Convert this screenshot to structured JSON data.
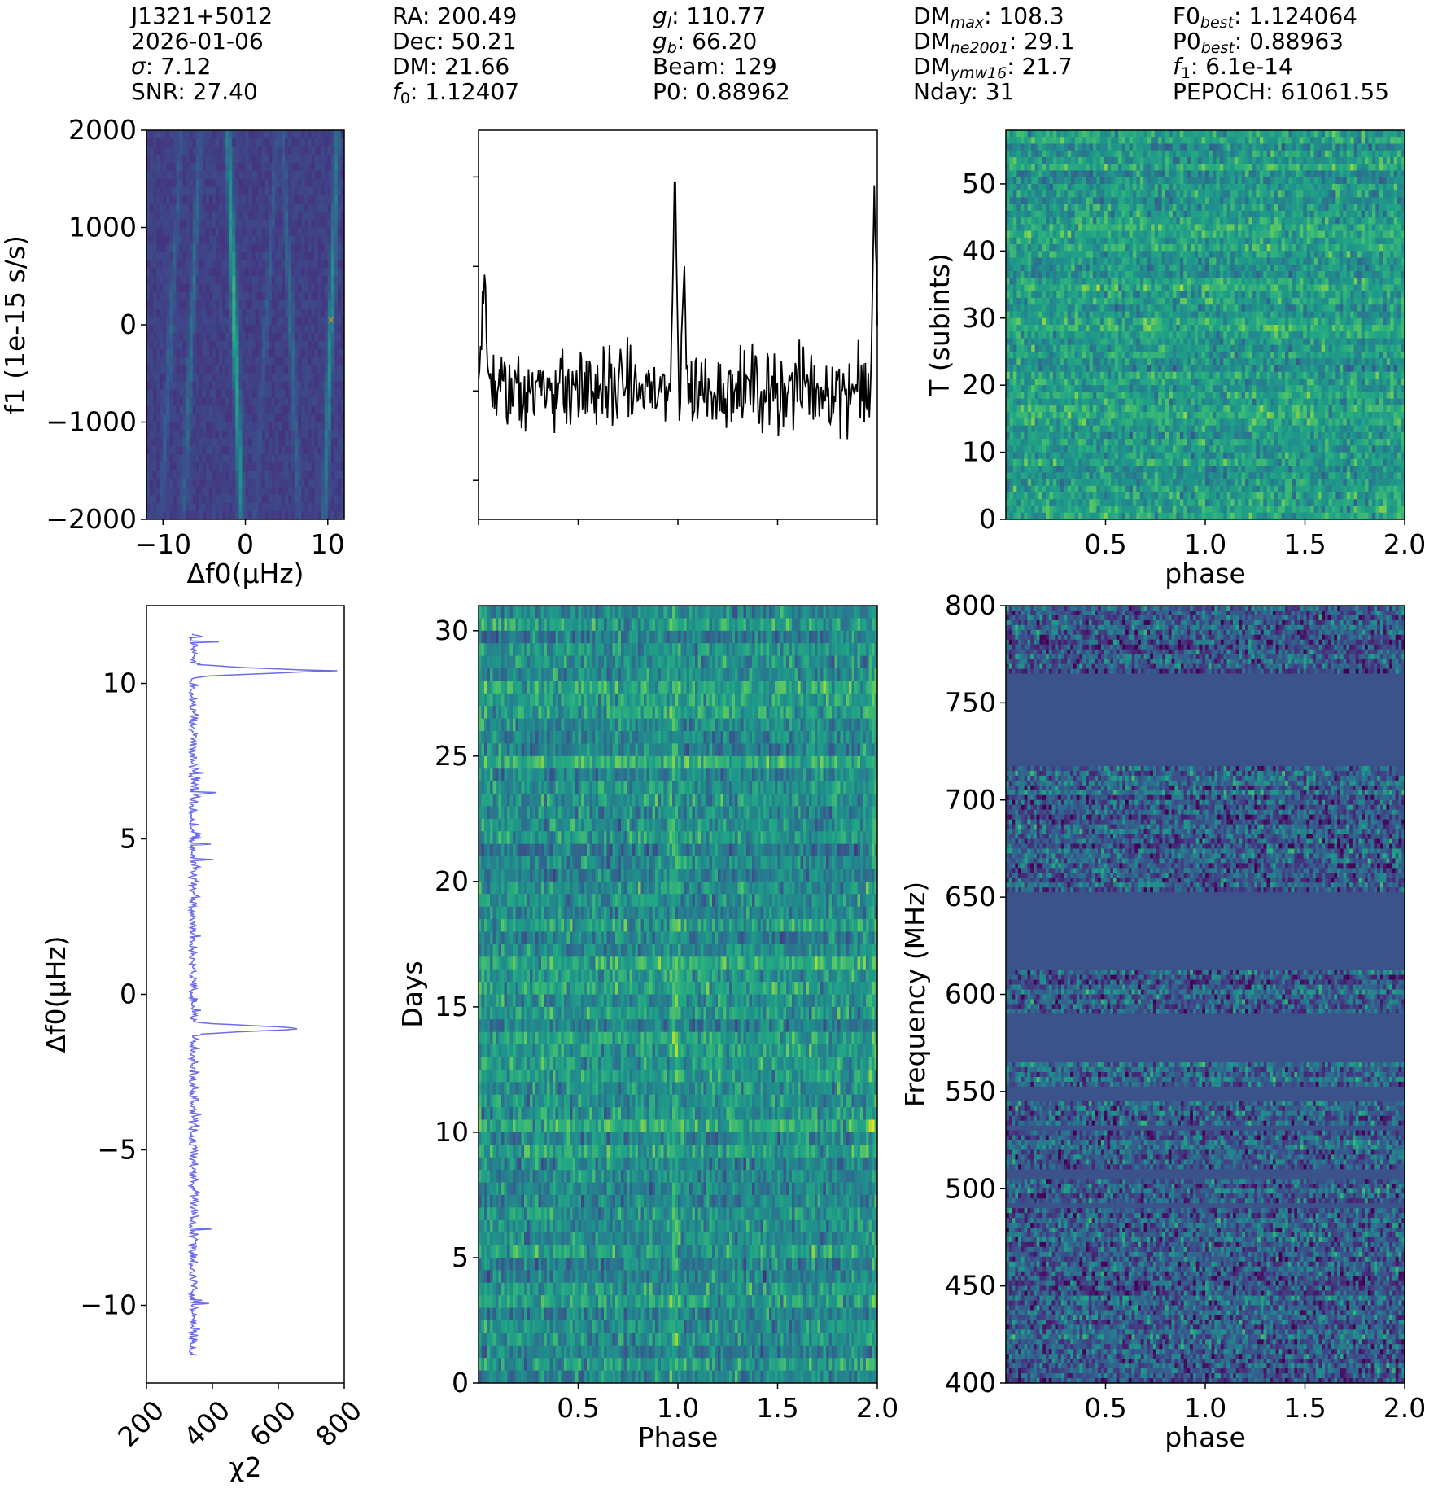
{
  "header": {
    "col1": {
      "name": "J1321+5012",
      "date": "2026-01-06",
      "sigma_label": "σ",
      "sigma": "7.12",
      "snr_label": "SNR",
      "snr": "27.40"
    },
    "col2": {
      "ra_label": "RA",
      "ra": "200.49",
      "dec_label": "Dec",
      "dec": "50.21",
      "dm_label": "DM",
      "dm": "21.66",
      "f0_label": "f",
      "f0_sub": "0",
      "f0": "1.12407"
    },
    "col3": {
      "gl_label": "g",
      "gl_sub": "l",
      "gl": "110.77",
      "gb_label": "g",
      "gb_sub": "b",
      "gb": "66.20",
      "beam_label": "Beam",
      "beam": "129",
      "p0_label": "P0",
      "p0": "0.88962"
    },
    "col4": {
      "dm_label": "DM",
      "dmmax_sub": "max",
      "dmmax": "108.3",
      "dmne_sub": "ne2001",
      "dmne": "29.1",
      "dmymw_sub": "ymw16",
      "dmymw": "21.7",
      "nday_label": "Nday",
      "nday": "31"
    },
    "col5": {
      "f0b_label": "F0",
      "f0b_sub": "best",
      "f0b": "1.124064",
      "p0b_label": "P0",
      "p0b_sub": "best",
      "p0b": "0.88963",
      "f1_label": "f",
      "f1_sub": "1",
      "f1": "6.1e-14",
      "pepoch_label": "PEPOCH",
      "pepoch": "61061.55"
    }
  },
  "colors": {
    "profile_line": "#000000",
    "chi2_line": "#6b6bf0",
    "marker": "#ff7f0e",
    "flagged_bg": "#3b528b"
  },
  "chart_data": [
    {
      "id": "f0_f1_search",
      "type": "heatmap",
      "cmap": "viridis",
      "xlabel": "Δf0(μHz)",
      "ylabel": "f1 (1e-15 s/s)",
      "xlim": [
        -12,
        12
      ],
      "ylim": [
        -2000,
        2000
      ],
      "xticks": [
        -10,
        0,
        10
      ],
      "xtick_labels": [
        "−10",
        "0",
        "10"
      ],
      "yticks": [
        2000,
        1000,
        0,
        -1000,
        -2000
      ],
      "ytick_labels": [
        "2000",
        "1000",
        "0",
        "−1000",
        "−2000"
      ],
      "ridges": [
        {
          "x0": -1.3,
          "slope": -0.0004,
          "strength": 0.9
        },
        {
          "x0": 10.4,
          "slope": 0.0004,
          "strength": 0.6
        },
        {
          "x0": -6.5,
          "slope": 0.0005,
          "strength": 0.35
        },
        {
          "x0": 5.5,
          "slope": -0.0005,
          "strength": 0.3
        },
        {
          "x0": -9,
          "slope": 0.0006,
          "strength": 0.25
        },
        {
          "x0": 2.5,
          "slope": 0.0007,
          "strength": 0.2
        }
      ],
      "marker": {
        "x": 10.4,
        "y": 50
      }
    },
    {
      "id": "pulse_profile",
      "type": "line",
      "xlabel": "",
      "ylabel": "",
      "x_range": [
        0,
        2
      ],
      "points": 400,
      "peaks": [
        {
          "phase": 0.985,
          "height": 1.0
        },
        {
          "phase": 0.03,
          "height": 0.55
        }
      ],
      "baseline_noise": 0.25
    },
    {
      "id": "subint_phase",
      "type": "heatmap",
      "cmap": "viridis",
      "xlabel": "phase",
      "ylabel": "T (subints)",
      "xlim": [
        0,
        2
      ],
      "ylim": [
        0,
        58
      ],
      "xticks": [
        0.5,
        1.0,
        1.5,
        2.0
      ],
      "xtick_labels": [
        "0.5",
        "1.0",
        "1.5",
        "2.0"
      ],
      "yticks": [
        0,
        10,
        20,
        30,
        40,
        50
      ],
      "ytick_labels": [
        "0",
        "10",
        "20",
        "30",
        "40",
        "50"
      ]
    },
    {
      "id": "chi2_curve",
      "type": "line",
      "xlabel": "χ2",
      "ylabel": "Δf0(μHz)",
      "xlim": [
        200,
        800
      ],
      "ylim": [
        -12.5,
        12.5
      ],
      "xticks": [
        200,
        400,
        600,
        800
      ],
      "xtick_labels": [
        "200",
        "400",
        "600",
        "800"
      ],
      "yticks": [
        10,
        5,
        0,
        -5,
        -10
      ],
      "ytick_labels": [
        "10",
        "5",
        "0",
        "−5",
        "−10"
      ],
      "y_range": [
        -11.6,
        11.6
      ],
      "baseline": 330,
      "peaks": [
        {
          "y": 10.4,
          "x": 690
        },
        {
          "y": -1.1,
          "x": 650
        }
      ]
    },
    {
      "id": "days_phase",
      "type": "heatmap",
      "cmap": "viridis",
      "xlabel": "Phase",
      "ylabel": "Days",
      "xlim": [
        0,
        2
      ],
      "ylim": [
        0,
        31
      ],
      "xticks": [
        0.5,
        1.0,
        1.5,
        2.0
      ],
      "xtick_labels": [
        "0.5",
        "1.0",
        "1.5",
        "2.0"
      ],
      "yticks": [
        0,
        5,
        10,
        15,
        20,
        25,
        30
      ],
      "ytick_labels": [
        "0",
        "5",
        "10",
        "15",
        "20",
        "25",
        "30"
      ]
    },
    {
      "id": "freq_phase",
      "type": "heatmap",
      "cmap": "viridis",
      "xlabel": "phase",
      "ylabel": "Frequency (MHz)",
      "xlim": [
        0,
        2
      ],
      "ylim": [
        400,
        800
      ],
      "xticks": [
        0.5,
        1.0,
        1.5,
        2.0
      ],
      "xtick_labels": [
        "0.5",
        "1.0",
        "1.5",
        "2.0"
      ],
      "yticks": [
        400,
        450,
        500,
        550,
        600,
        650,
        700,
        750,
        800
      ],
      "ytick_labels": [
        "400",
        "450",
        "500",
        "550",
        "600",
        "650",
        "700",
        "750",
        "800"
      ],
      "flagged_bands_mhz": [
        [
          718,
          766
        ],
        [
          612,
          652
        ],
        [
          566,
          590
        ],
        [
          546,
          552
        ],
        [
          529,
          532
        ],
        [
          504,
          511
        ],
        [
          490,
          493
        ]
      ]
    }
  ]
}
